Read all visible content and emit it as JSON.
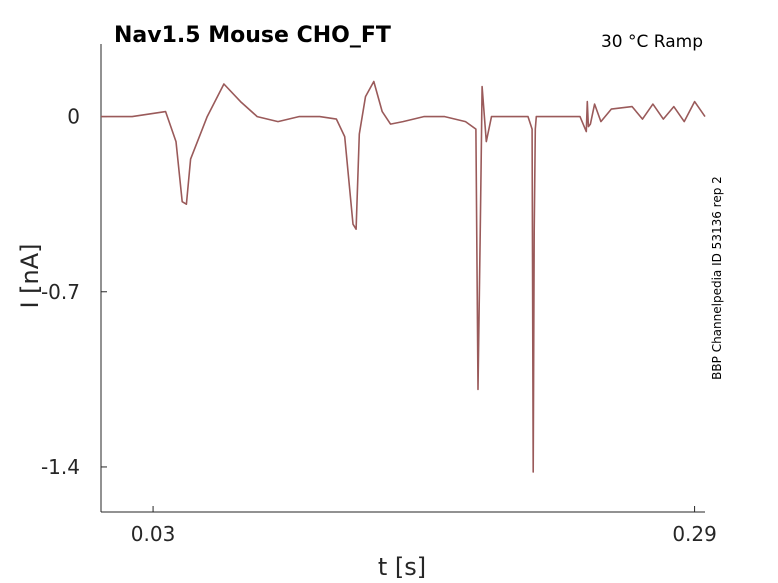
{
  "chart_data": {
    "type": "line",
    "title": "Nav1.5  Mouse  CHO_FT",
    "subtitle": "30 °C  Ramp",
    "side_note": "BBP Channelpedia ID 53136 rep 2",
    "xlabel": "t [s]",
    "ylabel": "I [nA]",
    "xlim": [
      0.005,
      0.295
    ],
    "ylim": [
      -1.58,
      0.29
    ],
    "xticks": [
      0.03,
      0.29
    ],
    "xtick_labels": [
      "0.03",
      "0.29"
    ],
    "yticks": [
      0,
      -0.7,
      -1.4
    ],
    "ytick_labels": [
      "0",
      "-0.7",
      "-1.4"
    ],
    "grid": false,
    "line_color": "#9a5a5a",
    "series": [
      {
        "x": [
          0.005,
          0.02,
          0.036,
          0.041,
          0.044,
          0.046,
          0.048,
          0.056,
          0.064,
          0.072,
          0.08,
          0.09,
          0.1,
          0.11,
          0.118,
          0.122,
          0.126,
          0.1275,
          0.129,
          0.132,
          0.136,
          0.14,
          0.144,
          0.15,
          0.16,
          0.17,
          0.18,
          0.185,
          0.186,
          0.187,
          0.1875,
          0.188,
          0.19,
          0.1925,
          0.194,
          0.196,
          0.2,
          0.21,
          0.212,
          0.2125,
          0.213,
          0.2135,
          0.214,
          0.22,
          0.23,
          0.235,
          0.238,
          0.2385,
          0.239,
          0.24,
          0.242,
          0.245,
          0.25,
          0.26,
          0.265,
          0.27,
          0.275,
          0.28,
          0.285,
          0.29,
          0.295
        ],
        "y": [
          0,
          0,
          0.02,
          -0.1,
          -0.34,
          -0.35,
          -0.17,
          0.0,
          0.13,
          0.06,
          0.0,
          -0.02,
          0.0,
          0.0,
          -0.01,
          -0.08,
          -0.43,
          -0.45,
          -0.07,
          0.08,
          0.14,
          0.02,
          -0.03,
          -0.02,
          0.0,
          0.0,
          -0.02,
          -0.05,
          -1.09,
          -0.5,
          -0.2,
          0.12,
          -0.1,
          0.0,
          0.0,
          0.0,
          0.0,
          0.0,
          -0.05,
          -1.42,
          -0.46,
          -0.05,
          0.0,
          0.0,
          0.0,
          0.0,
          -0.06,
          0.06,
          -0.04,
          -0.03,
          0.05,
          -0.02,
          0.03,
          0.04,
          -0.01,
          0.05,
          -0.01,
          0.04,
          -0.02,
          0.06,
          0.0
        ]
      }
    ]
  }
}
